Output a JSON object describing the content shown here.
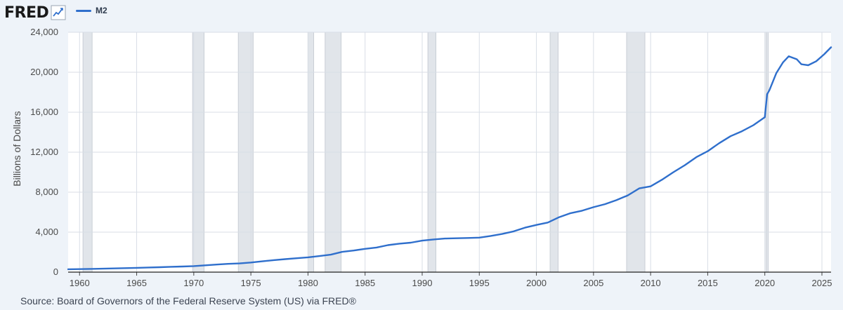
{
  "header": {
    "logo_text": "FRED",
    "logo_icon": "line-chart-icon"
  },
  "colors": {
    "series": "#2f6fcc",
    "plot_background": "#ffffff",
    "page_background": "#eef3f9",
    "recession_shading": "#e1e5ea",
    "grid": "#d8dee6"
  },
  "source_text": "Source: Board of Governors of the Federal Reserve System (US) via FRED®",
  "chart_data": {
    "type": "line",
    "title": "",
    "xlabel": "",
    "ylabel": "Billions of Dollars",
    "xlim": [
      1959,
      2025.8
    ],
    "ylim": [
      0,
      24000
    ],
    "grid": true,
    "legend_placement": "top-left",
    "x_ticks": [
      1960,
      1965,
      1970,
      1975,
      1980,
      1985,
      1990,
      1995,
      2000,
      2005,
      2010,
      2015,
      2020,
      2025
    ],
    "y_ticks": [
      0,
      4000,
      8000,
      12000,
      16000,
      20000,
      24000
    ],
    "y_tick_labels": [
      "0",
      "4,000",
      "8,000",
      "12,000",
      "16,000",
      "20,000",
      "24,000"
    ],
    "recessions": [
      [
        1960.3,
        1961.1
      ],
      [
        1969.9,
        1970.9
      ],
      [
        1973.9,
        1975.2
      ],
      [
        1980.0,
        1980.5
      ],
      [
        1981.5,
        1982.9
      ],
      [
        1990.5,
        1991.2
      ],
      [
        2001.2,
        2001.9
      ],
      [
        2007.9,
        2009.5
      ],
      [
        2020.1,
        2020.3
      ]
    ],
    "series": [
      {
        "name": "M2",
        "x": [
          1959,
          1960,
          1961,
          1962,
          1963,
          1964,
          1965,
          1966,
          1967,
          1968,
          1969,
          1970,
          1971,
          1972,
          1973,
          1974,
          1975,
          1976,
          1977,
          1978,
          1979,
          1980,
          1981,
          1982,
          1983,
          1984,
          1985,
          1986,
          1987,
          1988,
          1989,
          1990,
          1991,
          1992,
          1993,
          1994,
          1995,
          1996,
          1997,
          1998,
          1999,
          2000,
          2001,
          2002,
          2003,
          2004,
          2005,
          2006,
          2007,
          2008,
          2009,
          2010,
          2011,
          2012,
          2013,
          2014,
          2015,
          2016,
          2017,
          2018,
          2019,
          2020.0,
          2020.2,
          2020.4,
          2021,
          2021.6,
          2022.1,
          2022.8,
          2023.2,
          2023.8,
          2024.5,
          2025.2,
          2025.8
        ],
        "values": [
          290,
          305,
          320,
          345,
          370,
          400,
          430,
          460,
          490,
          530,
          560,
          600,
          680,
          760,
          830,
          870,
          960,
          1080,
          1200,
          1300,
          1390,
          1480,
          1610,
          1750,
          2030,
          2160,
          2330,
          2460,
          2700,
          2850,
          2950,
          3150,
          3270,
          3360,
          3390,
          3420,
          3450,
          3620,
          3820,
          4080,
          4450,
          4720,
          4960,
          5500,
          5900,
          6150,
          6500,
          6800,
          7200,
          7680,
          8380,
          8580,
          9250,
          10000,
          10700,
          11500,
          12100,
          12900,
          13600,
          14100,
          14700,
          15500,
          17800,
          18200,
          19900,
          21000,
          21600,
          21300,
          20800,
          20700,
          21100,
          21800,
          22500
        ]
      }
    ]
  }
}
